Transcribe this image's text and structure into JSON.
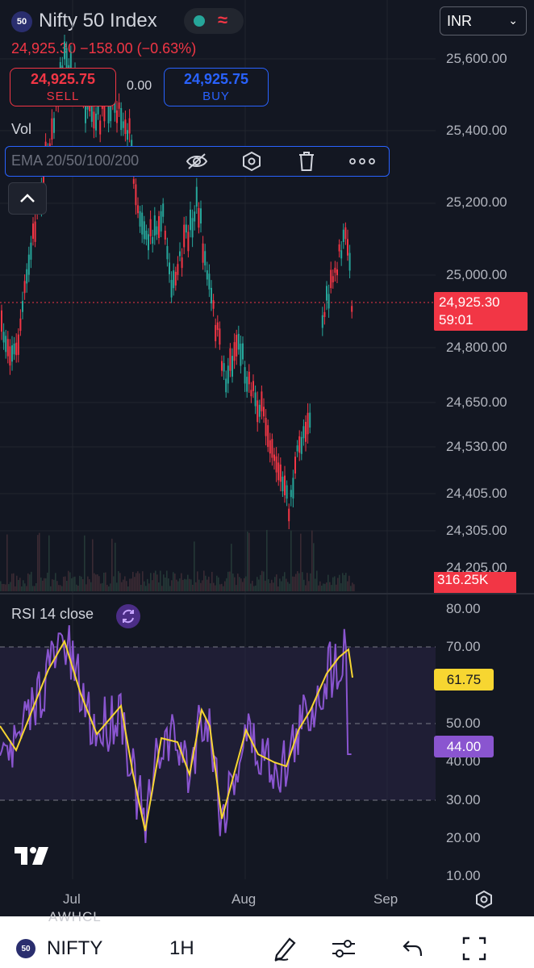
{
  "header": {
    "symbol_badge": "50",
    "title": "Nifty 50 Index",
    "quote": "24,925.30  −158.00 (−0.63%)",
    "currency": "INR",
    "status_icon": "market-status-icon",
    "colors": {
      "down": "#f23645",
      "up": "#26a69a",
      "buy": "#2962ff",
      "background": "#131722"
    }
  },
  "trade": {
    "sell_price": "24,925.75",
    "sell_label": "SELL",
    "spread": "0.00",
    "buy_price": "24,925.75",
    "buy_label": "BUY"
  },
  "indicators": {
    "vol_label": "Vol",
    "ema_label": "EMA 20/50/100/200",
    "rsi_label": "RSI 14 close"
  },
  "price_axis": [
    "25,600.00",
    "25,400.00",
    "25,200.00",
    "25,000.00",
    "24,800.00",
    "24,650.00",
    "24,530.00",
    "24,405.00",
    "24,305.00",
    "24,205.00"
  ],
  "last_price": {
    "value": "24,925.30",
    "countdown": "59:01"
  },
  "volume_tag": "316.25K",
  "rsi_axis": [
    "80.00",
    "70.00",
    "50.00",
    "40.00",
    "30.00",
    "20.00",
    "10.00"
  ],
  "rsi_values": {
    "ma": "61.75",
    "rsi": "44.00"
  },
  "time_axis": [
    "Jul",
    "Aug",
    "Sep"
  ],
  "watermark": "AWHCL",
  "bottom_bar": {
    "badge": "50",
    "symbol": "NIFTY",
    "interval": "1H"
  }
}
